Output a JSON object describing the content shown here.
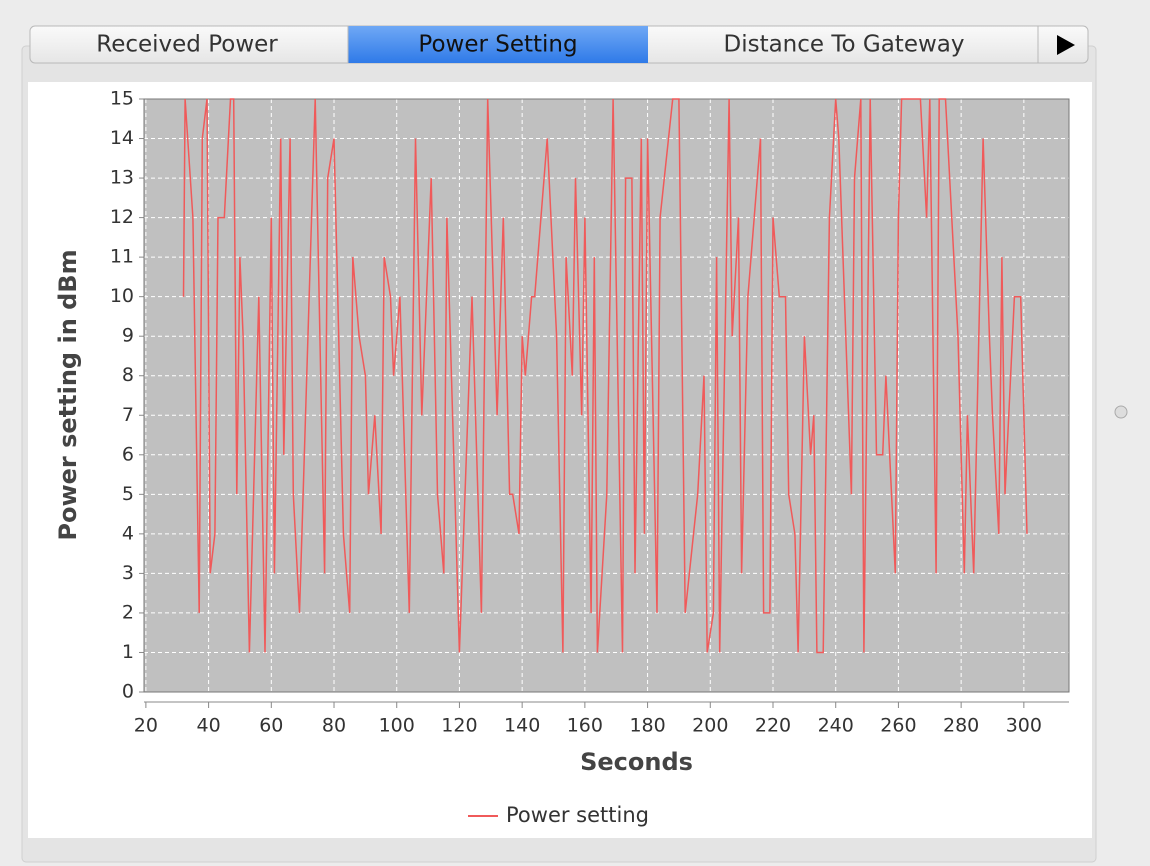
{
  "tabs": [
    "Received Power",
    "Power Setting",
    "Distance To Gateway"
  ],
  "chart_data": {
    "type": "line",
    "xlabel": "Seconds",
    "ylabel": "Power setting in dBm",
    "x": [
      32,
      32.5,
      35,
      37,
      38,
      39.5,
      40.5,
      42,
      43,
      45,
      47,
      48,
      49,
      50,
      51,
      53,
      56,
      58,
      60,
      61,
      63,
      64,
      66,
      67,
      69,
      74,
      77,
      78,
      80,
      83,
      85,
      86,
      88,
      90,
      91,
      93,
      95,
      96,
      98,
      99,
      101,
      104,
      106,
      108,
      111,
      113,
      115,
      116,
      120,
      124,
      127,
      129,
      132,
      134,
      136,
      137,
      139,
      140,
      141,
      143,
      144,
      148,
      151,
      153,
      154,
      156,
      157,
      159,
      160,
      162,
      163,
      164,
      167,
      169,
      172,
      173,
      175,
      176,
      178,
      179,
      180,
      183,
      184,
      188,
      190,
      192,
      196,
      198,
      199,
      201,
      202,
      203,
      206,
      207,
      209,
      210,
      212,
      216,
      217,
      219,
      220,
      222,
      224,
      225,
      227,
      228,
      230,
      232,
      233,
      234,
      236,
      238,
      240,
      241,
      245,
      246,
      248,
      249,
      251,
      253,
      255,
      256,
      259,
      260,
      261,
      267,
      269,
      270,
      272,
      273,
      275,
      279,
      281,
      282,
      284,
      287,
      289,
      290,
      292,
      293,
      294,
      297,
      299,
      301
    ],
    "series": [
      {
        "name": "Power setting",
        "color": "#f05a5a",
        "values": [
          10,
          15,
          12,
          2,
          14,
          15,
          3,
          4,
          12,
          12,
          15,
          15,
          5,
          11,
          9,
          1,
          10,
          1,
          12,
          3,
          14,
          6,
          14,
          5,
          2,
          15,
          3,
          13,
          14,
          4,
          2,
          11,
          9,
          8,
          5,
          7,
          4,
          11,
          10,
          8,
          10,
          2,
          14,
          7,
          13,
          5,
          3,
          12,
          1,
          10,
          2,
          15,
          7,
          12,
          5,
          5,
          4,
          9,
          8,
          10,
          10,
          14,
          9,
          1,
          11,
          8,
          13,
          7,
          12,
          2,
          11,
          1,
          5,
          15,
          1,
          13,
          13,
          3,
          14,
          4,
          14,
          2,
          12,
          15,
          15,
          2,
          5,
          8,
          1,
          2,
          11,
          1,
          15,
          9,
          12,
          3,
          10,
          14,
          2,
          2,
          12,
          10,
          10,
          5,
          4,
          1,
          9,
          6,
          7,
          1,
          1,
          12,
          15,
          14,
          5,
          13,
          15,
          1,
          15,
          6,
          6,
          8,
          3,
          12,
          15,
          15,
          12,
          15,
          3,
          15,
          15,
          9,
          3,
          7,
          3,
          14,
          9,
          7,
          4,
          11,
          5,
          10,
          10,
          4
        ]
      }
    ],
    "xlim": [
      19.4,
      314.4
    ],
    "xticks": [
      20,
      40,
      60,
      80,
      100,
      120,
      140,
      160,
      180,
      200,
      220,
      240,
      260,
      280,
      300
    ],
    "ylim": [
      0,
      15
    ],
    "yticks": [
      0,
      1,
      2,
      3,
      4,
      5,
      6,
      7,
      8,
      9,
      10,
      11,
      12,
      13,
      14,
      15
    ],
    "grid": true,
    "legend": "bottom"
  }
}
